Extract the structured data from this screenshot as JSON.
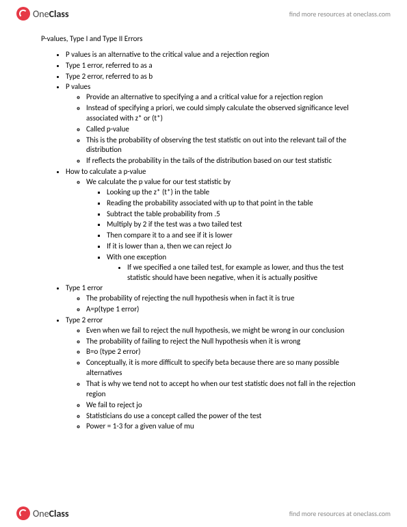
{
  "brand": {
    "name_part1": "One",
    "name_part2": "Class",
    "tagline": "find more resources at oneclass.com"
  },
  "doc": {
    "title": "P-values, Type I and Type II Errors",
    "bullets": [
      "P values is an alternative to the critical value and a rejection region",
      "Type 1 error, referred to as a",
      "Type 2 error, referred to as b",
      "P values",
      "How to calculate a p-value",
      "Type 1 error",
      "Type 2 error"
    ],
    "pvalues_sub": [
      "Provide an alternative to specifying a and a critical value for a rejection region",
      "Instead of specifying a priori, we could simply calculate the observed significance level associated with z* or (t*)",
      "Called p-value",
      "This is the probability of observing the test statistic on out into the relevant tail of the distribution",
      "If reflects the probability in the tails of the distribution based on our test statistic"
    ],
    "howto_sub": [
      "We calculate the p value for our test statistic by"
    ],
    "howto_steps": [
      "Looking up the z* (t*) in the table",
      "Reading the probability associated with up to that point in the table",
      "Subtract the table probability from .5",
      "Multiply by 2 if the test was a two tailed test",
      "Then compare it to a and see if it is lower",
      "If it is lower than a, then we can reject Jo",
      "With one exception"
    ],
    "howto_exception": "If we specified a one tailed test, for example as lower, and thus the test statistic should have been negative, when it is actually positive",
    "type1_sub": [
      "The probability of rejecting the null hypothesis when in fact it is true",
      "A=p(type 1 error)"
    ],
    "type2_sub": [
      "Even when we fail to reject the null hypothesis, we might be wrong in our conclusion",
      "The probability of failing to reject the Null hypothesis when it is wrong",
      "B=o (type 2 error)",
      "Conceptually, it is more difficult to specify beta because there are so many possible alternatives",
      "That is why we tend not to accept ho when our test statistic does not fall in the rejection region",
      "We fail to reject jo",
      "Statisticians do use a concept called the power of the test",
      "Power = 1-3 for a given value of mu"
    ]
  }
}
